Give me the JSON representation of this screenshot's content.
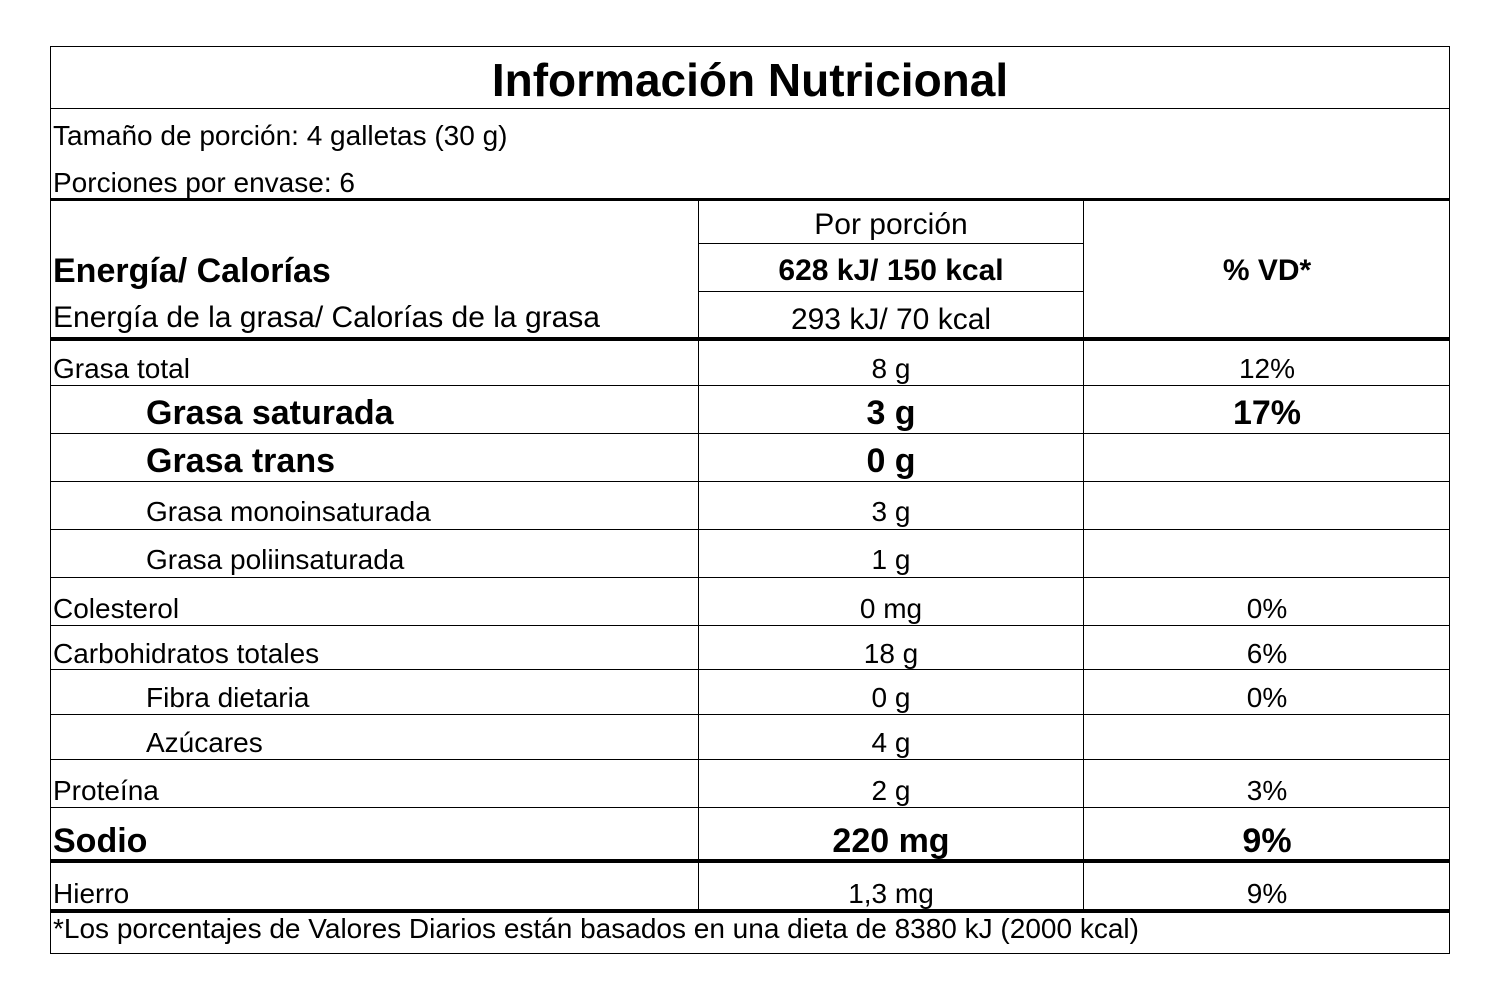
{
  "title": "Información Nutricional",
  "serving_size": "Tamaño de porción: 4 galletas (30 g)",
  "servings_per_container": "Porciones por envase: 6",
  "header": {
    "per_serving": "Por porción",
    "dv": "% VD*"
  },
  "energy": {
    "label": "Energía/ Calorías",
    "value": "628 kJ/ 150 kcal"
  },
  "fat_energy": {
    "label": "Energía de la grasa/ Calorías de la grasa",
    "value": "293 kJ/ 70 kcal"
  },
  "rows": [
    {
      "label": "Grasa total",
      "amount": "8 g",
      "dv": "12%"
    },
    {
      "label": "Grasa saturada",
      "amount": "3 g",
      "dv": "17%"
    },
    {
      "label": "Grasa trans",
      "amount": "0 g",
      "dv": ""
    },
    {
      "label": "Grasa monoinsaturada",
      "amount": "3 g",
      "dv": ""
    },
    {
      "label": "Grasa poliinsaturada",
      "amount": "1 g",
      "dv": ""
    },
    {
      "label": "Colesterol",
      "amount": "0 mg",
      "dv": "0%"
    },
    {
      "label": "Carbohidratos totales",
      "amount": "18 g",
      "dv": "6%"
    },
    {
      "label": "Fibra dietaria",
      "amount": "0 g",
      "dv": "0%"
    },
    {
      "label": "Azúcares",
      "amount": "4 g",
      "dv": ""
    },
    {
      "label": "Proteína",
      "amount": "2 g",
      "dv": "3%"
    },
    {
      "label": "Sodio",
      "amount": "220 mg",
      "dv": "9%"
    },
    {
      "label": "Hierro",
      "amount": "1,3 mg",
      "dv": "9%"
    }
  ],
  "footnote": "*Los porcentajes de Valores Diarios están basados en una dieta de 8380 kJ (2000 kcal)"
}
